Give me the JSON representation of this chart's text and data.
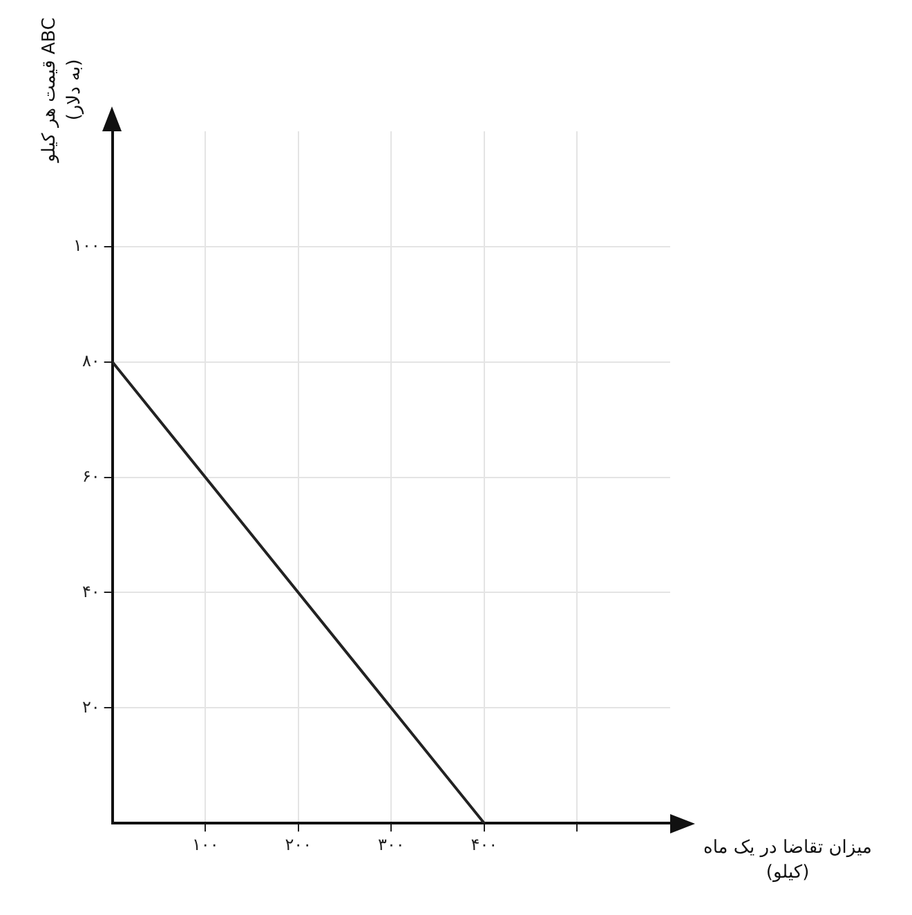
{
  "chart_data": {
    "type": "line",
    "xlabel": "میزان تقاضا در یک ماه\n(کیلو)",
    "ylabel": "قیمت هر کیلو ABC\n(به دلار)",
    "x": [
      0,
      400
    ],
    "series": [
      {
        "color": "#222222",
        "values": [
          80,
          0
        ]
      }
    ],
    "xlim": [
      0,
      600
    ],
    "ylim": [
      0,
      120
    ],
    "xticks": [
      {
        "value": 100,
        "label": "۱۰۰"
      },
      {
        "value": 200,
        "label": "۲۰۰"
      },
      {
        "value": 300,
        "label": "۳۰۰"
      },
      {
        "value": 400,
        "label": "۴۰۰"
      },
      {
        "value": 500,
        "label": null
      }
    ],
    "yticks": [
      {
        "value": 20,
        "label": "۲۰"
      },
      {
        "value": 40,
        "label": "۴۰"
      },
      {
        "value": 60,
        "label": "۶۰"
      },
      {
        "value": 80,
        "label": "۸۰"
      },
      {
        "value": 100,
        "label": "۱۰۰"
      }
    ],
    "grid": true,
    "marker": "none",
    "line_style": "solid",
    "legend": false
  }
}
